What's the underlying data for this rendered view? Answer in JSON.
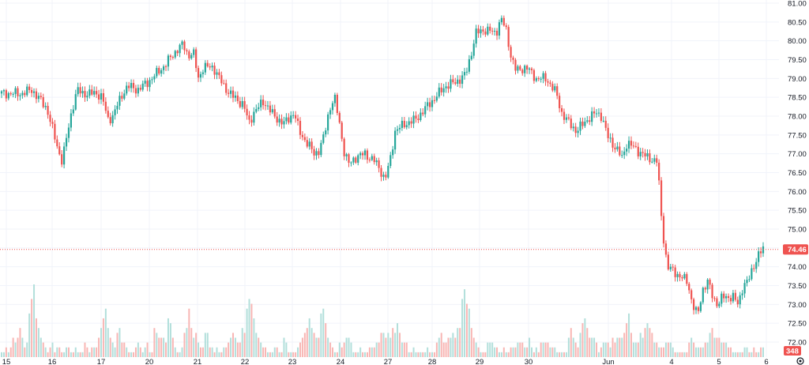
{
  "chart_data": {
    "type": "candlestick",
    "x_ticks": [
      "15",
      "16",
      "17",
      "20",
      "21",
      "22",
      "23",
      "24",
      "27",
      "28",
      "29",
      "30",
      "Jun",
      "4",
      "5",
      "6"
    ],
    "y_ticks": [
      "72.00",
      "72.50",
      "73.00",
      "73.50",
      "74.00",
      "74.50",
      "75.00",
      "75.50",
      "76.00",
      "76.50",
      "77.00",
      "77.50",
      "78.00",
      "78.50",
      "79.00",
      "79.50",
      "80.00",
      "80.50",
      "81.00"
    ],
    "ylim": [
      72.0,
      81.0
    ],
    "last_price": "74.46",
    "last_volume": "348",
    "price_path": [
      [
        0,
        78.6
      ],
      [
        4,
        78.6
      ],
      [
        6,
        78.7
      ],
      [
        9,
        78.2
      ],
      [
        11,
        77.2
      ],
      [
        12,
        76.8
      ],
      [
        14,
        78.2
      ],
      [
        15,
        78.7
      ],
      [
        16,
        78.6
      ],
      [
        19,
        78.6
      ],
      [
        20,
        78.5
      ],
      [
        21,
        77.9
      ],
      [
        22,
        78.0
      ],
      [
        24,
        78.6
      ],
      [
        25,
        78.8
      ],
      [
        27,
        78.7
      ],
      [
        29,
        78.9
      ],
      [
        32,
        79.3
      ],
      [
        35,
        79.8
      ],
      [
        36,
        79.9
      ],
      [
        37,
        79.6
      ],
      [
        38,
        79.7
      ],
      [
        39,
        79.0
      ],
      [
        40,
        79.3
      ],
      [
        42,
        79.3
      ],
      [
        44,
        78.8
      ],
      [
        46,
        78.5
      ],
      [
        48,
        78.3
      ],
      [
        49,
        77.8
      ],
      [
        50,
        78.1
      ],
      [
        52,
        78.4
      ],
      [
        54,
        78.0
      ],
      [
        56,
        77.8
      ],
      [
        58,
        78.1
      ],
      [
        59,
        77.6
      ],
      [
        60,
        77.4
      ],
      [
        62,
        77.0
      ],
      [
        63,
        77.1
      ],
      [
        64,
        77.5
      ],
      [
        65,
        78.2
      ],
      [
        66,
        78.5
      ],
      [
        67,
        77.8
      ],
      [
        68,
        77.0
      ],
      [
        69,
        76.7
      ],
      [
        70,
        76.9
      ],
      [
        72,
        77.0
      ],
      [
        74,
        76.8
      ],
      [
        75,
        76.6
      ],
      [
        76,
        76.3
      ],
      [
        77,
        76.8
      ],
      [
        78,
        77.6
      ],
      [
        80,
        77.8
      ],
      [
        82,
        77.9
      ],
      [
        84,
        78.2
      ],
      [
        86,
        78.5
      ],
      [
        88,
        78.8
      ],
      [
        90,
        78.9
      ],
      [
        92,
        79.1
      ],
      [
        93,
        79.6
      ],
      [
        94,
        80.2
      ],
      [
        96,
        80.3
      ],
      [
        98,
        80.2
      ],
      [
        99,
        80.6
      ],
      [
        100,
        80.3
      ],
      [
        101,
        79.6
      ],
      [
        102,
        79.2
      ],
      [
        104,
        79.3
      ],
      [
        106,
        79.0
      ],
      [
        108,
        79.0
      ],
      [
        110,
        78.6
      ],
      [
        111,
        78.1
      ],
      [
        112,
        77.9
      ],
      [
        114,
        77.6
      ],
      [
        116,
        77.9
      ],
      [
        118,
        78.1
      ],
      [
        119,
        78.0
      ],
      [
        120,
        77.5
      ],
      [
        121,
        77.3
      ],
      [
        123,
        76.9
      ],
      [
        124,
        77.3
      ],
      [
        126,
        77.1
      ],
      [
        128,
        76.9
      ],
      [
        130,
        76.8
      ],
      [
        131,
        75.0
      ],
      [
        132,
        74.0
      ],
      [
        134,
        73.8
      ],
      [
        136,
        73.6
      ],
      [
        137,
        73.0
      ],
      [
        138,
        72.7
      ],
      [
        139,
        73.4
      ],
      [
        140,
        73.6
      ],
      [
        141,
        73.2
      ],
      [
        142,
        73.0
      ],
      [
        143,
        73.2
      ],
      [
        145,
        73.2
      ],
      [
        146,
        73.0
      ],
      [
        147,
        73.5
      ],
      [
        148,
        73.6
      ],
      [
        149,
        74.0
      ],
      [
        150,
        74.3
      ],
      [
        151,
        74.46
      ]
    ],
    "volumes": [
      1,
      1,
      2,
      1,
      2,
      4,
      3,
      4,
      6,
      4,
      2,
      3,
      9,
      12,
      15,
      8,
      6,
      4,
      3,
      2,
      1,
      2,
      3,
      1,
      2,
      2,
      1,
      1,
      2,
      2,
      1,
      1,
      2,
      1,
      1,
      1,
      3,
      2,
      1,
      2,
      2,
      2,
      4,
      6,
      8,
      10,
      6,
      4,
      3,
      2,
      5,
      6,
      3,
      3,
      2,
      1,
      1,
      1,
      2,
      3,
      2,
      1,
      2,
      3,
      1,
      1,
      6,
      5,
      4,
      4,
      4,
      3,
      8,
      7,
      4,
      2,
      1,
      1,
      2,
      5,
      6,
      10,
      6,
      4,
      5,
      3,
      2,
      2,
      5,
      5,
      2,
      2,
      1,
      2,
      1,
      1,
      2,
      2,
      3,
      4,
      5,
      4,
      3,
      3,
      6,
      5,
      10,
      12,
      11,
      8,
      5,
      4,
      3,
      2,
      2,
      1,
      1,
      1,
      2,
      2,
      1,
      1,
      4,
      3,
      1,
      1,
      1,
      1,
      2,
      3,
      4,
      5,
      6,
      8,
      6,
      5,
      4,
      4,
      9,
      10,
      7,
      4,
      3,
      2,
      1,
      1,
      3,
      2,
      3,
      4,
      4,
      3,
      1,
      1,
      1,
      2,
      1,
      1,
      1,
      2,
      2,
      2,
      3,
      3,
      5,
      5,
      4,
      5,
      4,
      6,
      5,
      7,
      5,
      3,
      3,
      3,
      1,
      1,
      2,
      1,
      1,
      1,
      1,
      1,
      2,
      1,
      1,
      1,
      3,
      4,
      5,
      3,
      3,
      4,
      4,
      5,
      4,
      6,
      6,
      12,
      14,
      11,
      10,
      6,
      4,
      3,
      2,
      1,
      1,
      1,
      3,
      3,
      3,
      2,
      2,
      1,
      1,
      2,
      1,
      1,
      2,
      2,
      2,
      3,
      3,
      3,
      2,
      2,
      4,
      2,
      1,
      2,
      1,
      3,
      3,
      3,
      3,
      2,
      2,
      2,
      1,
      1,
      1,
      1,
      1,
      4,
      6,
      4,
      3,
      2,
      5,
      7,
      8,
      6,
      4,
      4,
      4,
      3,
      1,
      2,
      3,
      3,
      3,
      2,
      4,
      3,
      4,
      4,
      4,
      5,
      7,
      9,
      5,
      3,
      3,
      3,
      5,
      4,
      6,
      7,
      6,
      5,
      3,
      3,
      2,
      2,
      2,
      3,
      3,
      3,
      2,
      1,
      1,
      1,
      1,
      1,
      1,
      3,
      4,
      3,
      2,
      2,
      2,
      2,
      3,
      3,
      5,
      6,
      4,
      4,
      4,
      3,
      3,
      3,
      2,
      2,
      1,
      1,
      1,
      1,
      1,
      2,
      2,
      1,
      1,
      2,
      1,
      1,
      2,
      2,
      2,
      4,
      3,
      1,
      1,
      1,
      1,
      1,
      3,
      2,
      2,
      4,
      3,
      3,
      3,
      4,
      5,
      4,
      3,
      2,
      2,
      2,
      2,
      1,
      1,
      1,
      1,
      2,
      2,
      3,
      3,
      5,
      7,
      9,
      10,
      9,
      8,
      6,
      4,
      4,
      3,
      2,
      2,
      1,
      1,
      1,
      1,
      1,
      1,
      2,
      2,
      1,
      1,
      1,
      3,
      3,
      2,
      2,
      2,
      2,
      3,
      1,
      1,
      1,
      1,
      1,
      1,
      1
    ]
  }
}
